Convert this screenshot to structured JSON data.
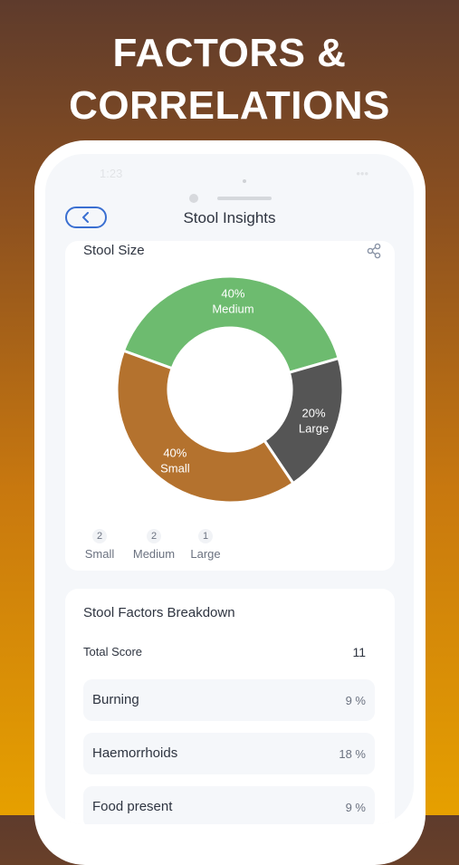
{
  "headline": {
    "line1": "FACTORS &",
    "line2": "CORRELATIONS"
  },
  "status_bar": {
    "time": "1:23",
    "indicators": "•••"
  },
  "header": {
    "title": "Stool Insights",
    "back_icon": "chevron-left-icon"
  },
  "stool_size": {
    "title": "Stool Size",
    "share_icon": "share-icon",
    "counts": [
      {
        "num": "2",
        "label": "Small"
      },
      {
        "num": "2",
        "label": "Medium"
      },
      {
        "num": "1",
        "label": "Large"
      }
    ]
  },
  "chart_data": {
    "type": "pie",
    "categories": [
      "Medium",
      "Large",
      "Small"
    ],
    "values": [
      40,
      20,
      40
    ],
    "labels": [
      "40%",
      "20%",
      "40%"
    ],
    "colors": [
      "#6dbb6f",
      "#555555",
      "#b4722e"
    ],
    "donut": true
  },
  "factors": {
    "title": "Stool Factors Breakdown",
    "total_label": "Total Score",
    "total_value": "11",
    "items": [
      {
        "name": "Burning",
        "pct": "9 %"
      },
      {
        "name": "Haemorrhoids",
        "pct": "18 %"
      },
      {
        "name": "Food present",
        "pct": "9 %"
      }
    ]
  }
}
